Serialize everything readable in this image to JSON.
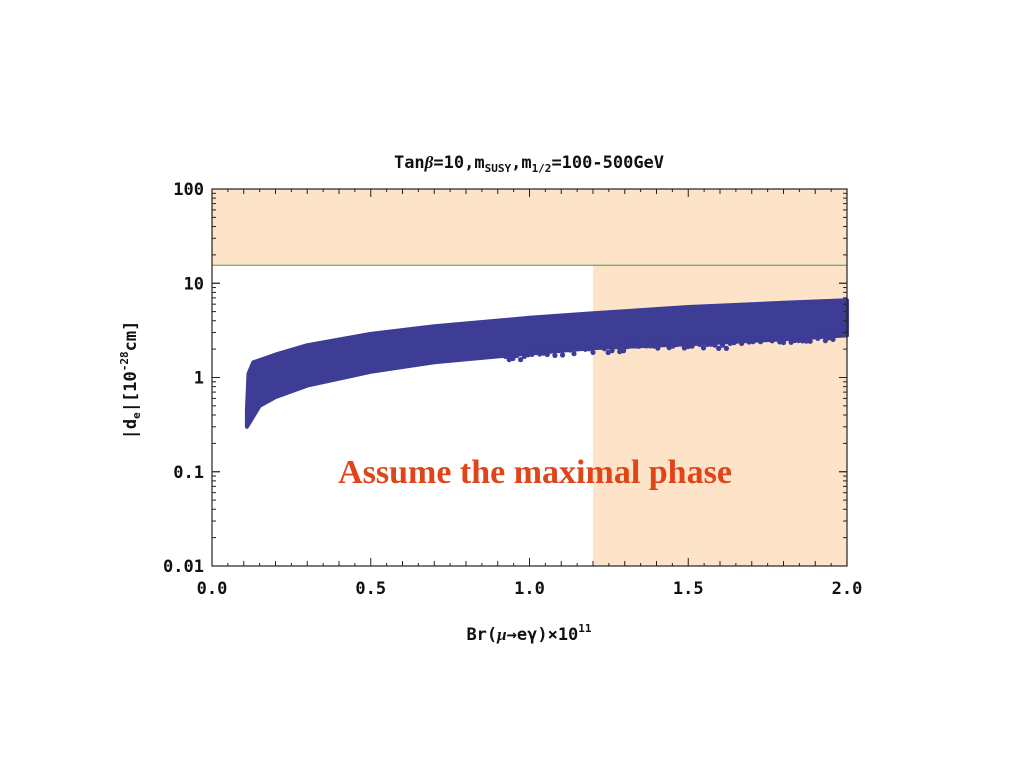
{
  "chart_data": {
    "type": "scatter",
    "title": {
      "p1": "Tan",
      "beta": "β",
      "p2": "=10,m",
      "sub1": "SUSY",
      "p3": ",m",
      "sub2": "1/2",
      "p4": "=100-500GeV"
    },
    "xlabel": {
      "p1": "Br(",
      "mu": "μ",
      "arrow": "→",
      "p2": "eγ)×10",
      "sup": "11"
    },
    "ylabel": {
      "p1": "|d",
      "sub": "e",
      "p2": "|[10",
      "sup": "-28",
      "p3": "cm]"
    },
    "xlim": [
      0.0,
      2.0
    ],
    "ylim": [
      0.01,
      100
    ],
    "yscale": "log",
    "x_ticks": [
      "0.0",
      "0.5",
      "1.0",
      "1.5",
      "2.0"
    ],
    "y_ticks": [
      "0.01",
      "0.1",
      "1",
      "10",
      "100"
    ],
    "excluded_regions": [
      {
        "axis": "y",
        "from": 15.5,
        "to": 100,
        "color": "#fde3c8"
      },
      {
        "axis": "x",
        "from": 1.2,
        "to": 2.0,
        "color": "#fde3c8"
      }
    ],
    "bound_line": {
      "y": 15.5,
      "color": "#4a9a4a"
    },
    "band": {
      "color": "#3d3d96",
      "upper": [
        [
          0.11,
          0.45
        ],
        [
          0.115,
          1.1
        ],
        [
          0.13,
          1.45
        ],
        [
          0.2,
          1.75
        ],
        [
          0.3,
          2.2
        ],
        [
          0.5,
          2.9
        ],
        [
          0.7,
          3.5
        ],
        [
          1.0,
          4.3
        ],
        [
          1.2,
          4.8
        ],
        [
          1.5,
          5.6
        ],
        [
          1.8,
          6.2
        ],
        [
          2.0,
          6.6
        ]
      ],
      "lower": [
        [
          0.11,
          0.3
        ],
        [
          0.15,
          0.5
        ],
        [
          0.2,
          0.62
        ],
        [
          0.3,
          0.82
        ],
        [
          0.5,
          1.15
        ],
        [
          0.7,
          1.45
        ],
        [
          1.0,
          1.8
        ],
        [
          1.2,
          2.05
        ],
        [
          1.5,
          2.25
        ],
        [
          1.8,
          2.55
        ],
        [
          2.0,
          2.8
        ]
      ]
    },
    "annotation": "Assume the maximal phase"
  }
}
